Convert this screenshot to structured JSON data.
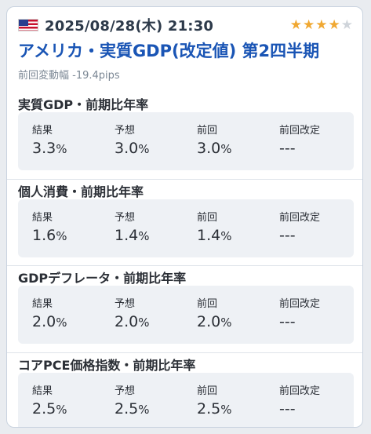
{
  "event": {
    "datetime": "2025/08/28(木) 21:30",
    "title": "アメリカ・実質GDP(改定値) 第2四半期",
    "change_label": "前回変動幅",
    "change_value": "-19.4pips",
    "importance": 4,
    "importance_max": 5,
    "flag_icon": "us-flag-icon",
    "colors": {
      "title": "#1a55b5",
      "star_on": "#f0a832",
      "star_off": "#cfd4da"
    }
  },
  "columns": [
    "結果",
    "予想",
    "前回",
    "前回改定"
  ],
  "sections": [
    {
      "title": "実質GDP・前期比年率",
      "values": [
        {
          "num": "3.3",
          "unit": "%"
        },
        {
          "num": "3.0",
          "unit": "%"
        },
        {
          "num": "3.0",
          "unit": "%"
        },
        {
          "num": "---",
          "unit": ""
        }
      ]
    },
    {
      "title": "個人消費・前期比年率",
      "values": [
        {
          "num": "1.6",
          "unit": "%"
        },
        {
          "num": "1.4",
          "unit": "%"
        },
        {
          "num": "1.4",
          "unit": "%"
        },
        {
          "num": "---",
          "unit": ""
        }
      ]
    },
    {
      "title": "GDPデフレータ・前期比年率",
      "values": [
        {
          "num": "2.0",
          "unit": "%"
        },
        {
          "num": "2.0",
          "unit": "%"
        },
        {
          "num": "2.0",
          "unit": "%"
        },
        {
          "num": "---",
          "unit": ""
        }
      ]
    },
    {
      "title": "コアPCE価格指数・前期比年率",
      "values": [
        {
          "num": "2.5",
          "unit": "%"
        },
        {
          "num": "2.5",
          "unit": "%"
        },
        {
          "num": "2.5",
          "unit": "%"
        },
        {
          "num": "---",
          "unit": ""
        }
      ]
    }
  ]
}
